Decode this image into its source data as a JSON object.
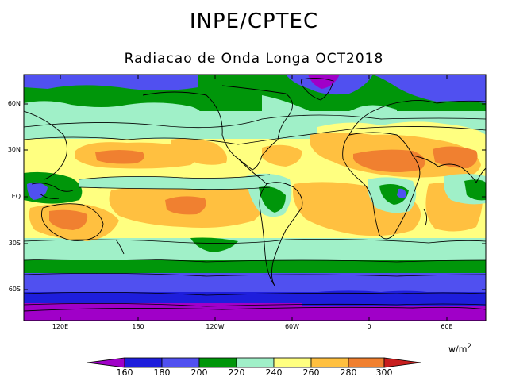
{
  "title": "INPE/CPTEC",
  "subtitle": "Radiacao de Onda Longa OCT2018",
  "units": {
    "base": "w/m",
    "exp": "2"
  },
  "lat_labels": [
    "60N",
    "30N",
    "EQ",
    "30S",
    "60S"
  ],
  "lon_labels": [
    "120E",
    "180",
    "120W",
    "60W",
    "0",
    "60E"
  ],
  "colorbar": {
    "ticks": [
      "160",
      "180",
      "200",
      "220",
      "240",
      "260",
      "280",
      "300"
    ],
    "colors": [
      "#a000c8",
      "#1e1edc",
      "#5050f0",
      "#00960a",
      "#a0f0c8",
      "#ffff80",
      "#ffc040",
      "#f08030",
      "#c81e1e"
    ]
  }
}
